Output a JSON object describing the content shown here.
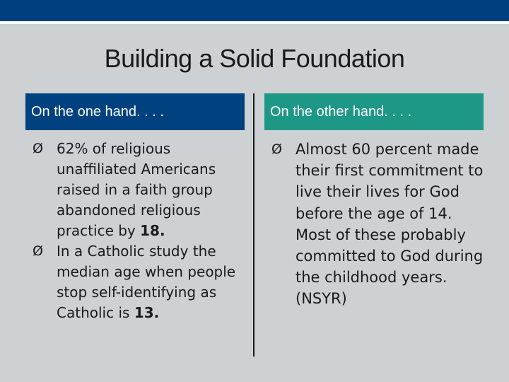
{
  "slide": {
    "title": "Building a Solid Foundation"
  },
  "left_column": {
    "header": "On the one hand. . . .",
    "bullets": [
      {
        "text": "62% of religious unaffiliated Americans raised in a faith group abandoned religious practice by ",
        "bold": "18."
      },
      {
        "text": "In a Catholic study the median age when people stop self-identifying as Catholic is ",
        "bold": "13."
      }
    ]
  },
  "right_column": {
    "header": "On the other hand. . . .",
    "bullets": [
      {
        "text": "Almost 60 percent made their first commitment to live their lives for God before the age of 14. Most of these probably committed to God during the childhood years. (NSYR)"
      }
    ]
  },
  "icons": {
    "bullet_glyph": "Ø",
    "bullet_icon_name": "arrow-bullet-icon"
  },
  "colors": {
    "top_bar": "#003f7f",
    "left_header": "#00427f",
    "right_header": "#1e9886",
    "background": "#cdd1d4"
  }
}
